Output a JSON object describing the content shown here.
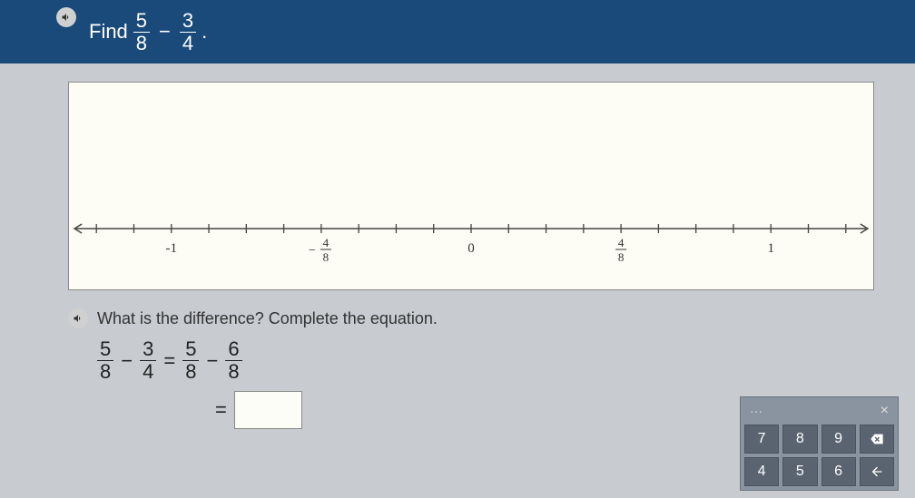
{
  "header": {
    "prompt_text": "Find",
    "frac1": {
      "num": "5",
      "den": "8"
    },
    "op": "−",
    "frac2": {
      "num": "3",
      "den": "4"
    },
    "period": "."
  },
  "number_line": {
    "background_color": "#fefdf5",
    "axis_color": "#444",
    "font_family": "serif",
    "range": [
      -1.25,
      1.25
    ],
    "tick_step_eighths": 1,
    "visible_ticks_eighths": [
      -10,
      10
    ],
    "labeled_ticks": [
      {
        "value_eighths": -8,
        "label": {
          "type": "int",
          "text": "-1"
        }
      },
      {
        "value_eighths": -4,
        "label": {
          "type": "frac",
          "sign": "−",
          "num": "4",
          "den": "8"
        }
      },
      {
        "value_eighths": 0,
        "label": {
          "type": "int",
          "text": "0"
        }
      },
      {
        "value_eighths": 4,
        "label": {
          "type": "frac",
          "sign": "",
          "num": "4",
          "den": "8"
        }
      },
      {
        "value_eighths": 8,
        "label": {
          "type": "int",
          "text": "1"
        }
      }
    ]
  },
  "question": {
    "text": "What is the difference? Complete the equation.",
    "line1": {
      "a": {
        "num": "5",
        "den": "8"
      },
      "op1": "−",
      "b": {
        "num": "3",
        "den": "4"
      },
      "eq": "=",
      "c": {
        "num": "5",
        "den": "8"
      },
      "op2": "−",
      "d": {
        "num": "6",
        "den": "8"
      }
    },
    "line2": {
      "eq": "="
    }
  },
  "keypad": {
    "more": "···",
    "close": "×",
    "rows": [
      [
        {
          "t": "7"
        },
        {
          "t": "8"
        },
        {
          "t": "9"
        },
        {
          "icon": "backspace"
        }
      ],
      [
        {
          "t": "4"
        },
        {
          "t": "5"
        },
        {
          "t": "6"
        },
        {
          "icon": "arrow-left"
        }
      ]
    ]
  },
  "colors": {
    "header_bg": "#1a4a7a",
    "page_bg": "#c8cbd0",
    "keypad_bg": "#8a94a0",
    "keypad_btn": "#5a6470"
  }
}
